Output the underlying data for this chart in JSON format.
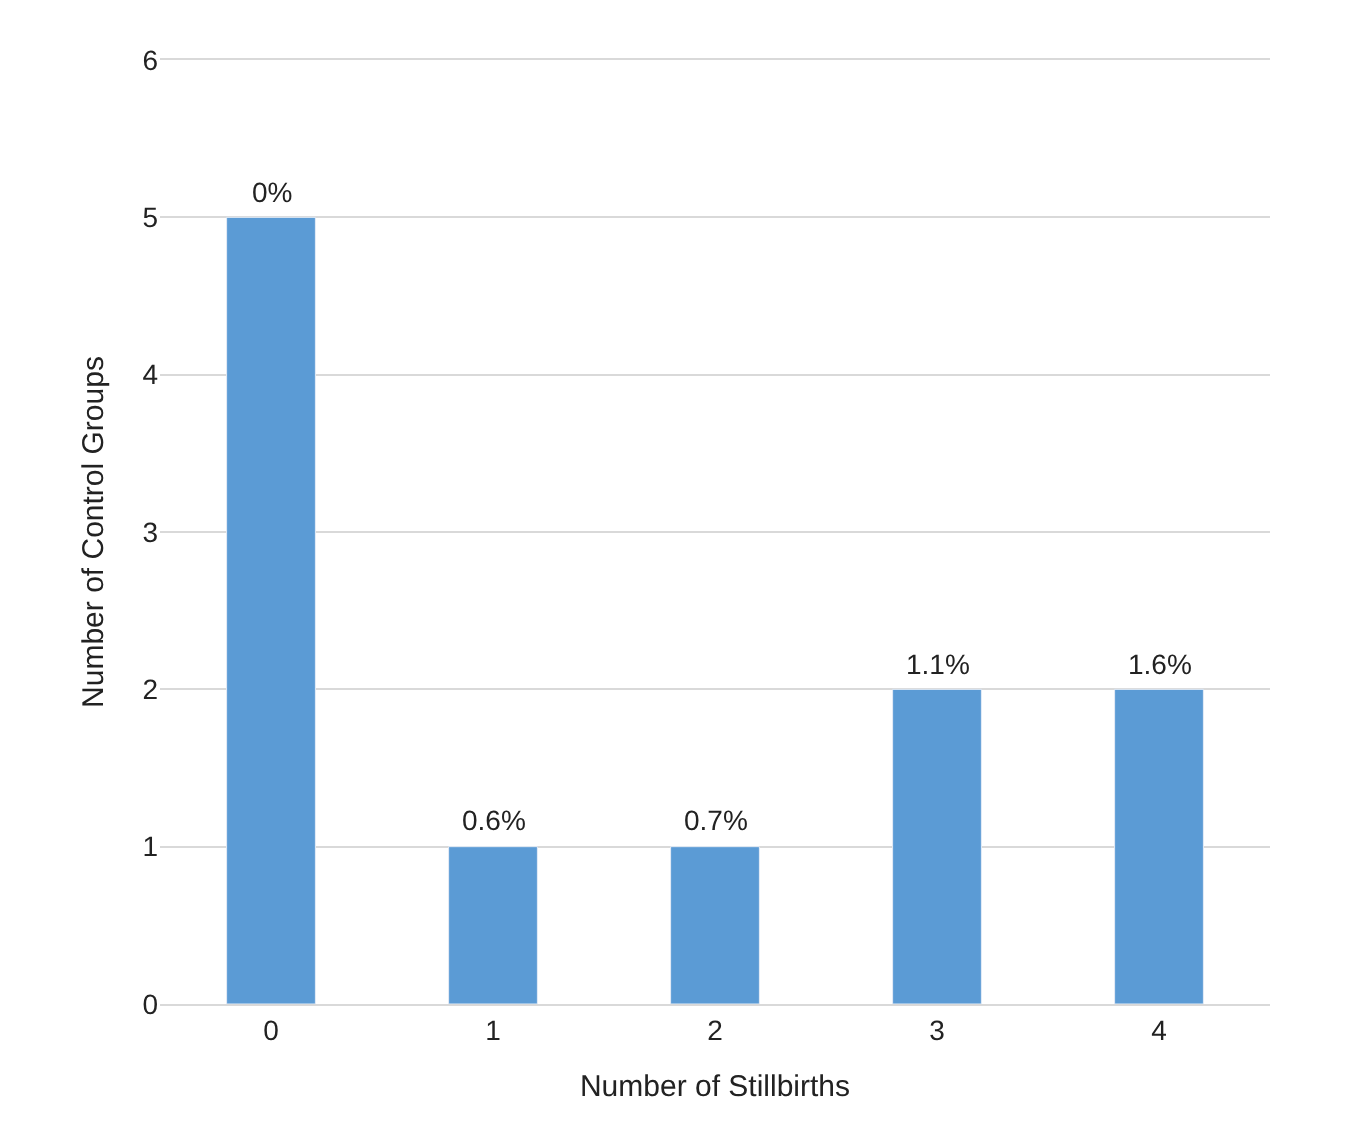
{
  "chart_data": {
    "type": "bar",
    "xlabel": "Number of Stillbirths",
    "ylabel": "Number of Control Groups",
    "categories": [
      "0",
      "1",
      "2",
      "3",
      "4"
    ],
    "values": [
      5,
      1,
      1,
      2,
      2
    ],
    "annotations": [
      {
        "text": "0%",
        "x": "0",
        "y": 5
      },
      {
        "text": "0.6%",
        "x": "1",
        "y": 1
      },
      {
        "text": "0.7%",
        "x": "2",
        "y": 1
      },
      {
        "text": "1.1%",
        "x": "3",
        "y": 2
      },
      {
        "text": "1.6%",
        "x": "4",
        "y": 2
      }
    ],
    "color": "#5b9bd5",
    "ylim": [
      0,
      6
    ],
    "yticks": [
      0,
      1,
      2,
      3,
      4,
      5,
      6
    ],
    "grid": "y"
  }
}
